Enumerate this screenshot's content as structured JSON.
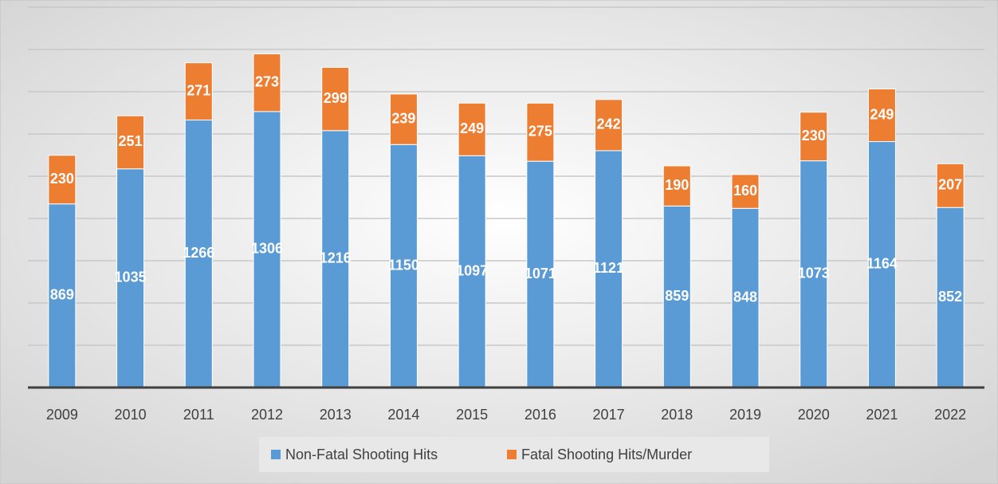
{
  "chart_data": {
    "type": "stacked_bar",
    "categories": [
      "2009",
      "2010",
      "2011",
      "2012",
      "2013",
      "2014",
      "2015",
      "2016",
      "2017",
      "2018",
      "2019",
      "2020",
      "2021",
      "2022"
    ],
    "series": [
      {
        "name": "Non-Fatal Shooting Hits",
        "color": "#5b9bd5",
        "values": [
          869,
          1035,
          1266,
          1306,
          1216,
          1150,
          1097,
          1071,
          1121,
          859,
          848,
          1073,
          1164,
          852
        ]
      },
      {
        "name": "Fatal Shooting Hits/Murder",
        "color": "#ed7d31",
        "values": [
          230,
          251,
          271,
          273,
          299,
          239,
          249,
          275,
          242,
          190,
          160,
          230,
          249,
          207
        ]
      }
    ],
    "ylim": [
      0,
      1800
    ],
    "yticks": [
      0,
      200,
      400,
      600,
      800,
      1000,
      1200,
      1400,
      1600,
      1800
    ],
    "grid": true,
    "legend": "bottom"
  }
}
